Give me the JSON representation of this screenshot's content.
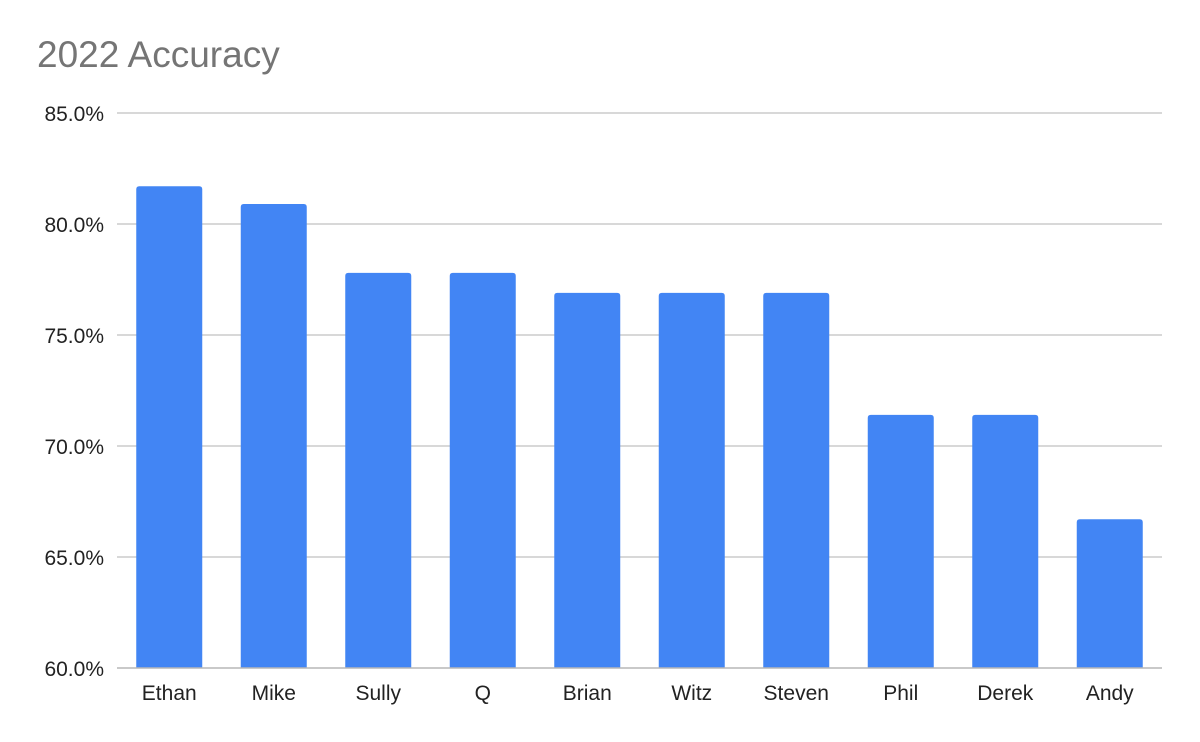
{
  "chart_data": {
    "type": "bar",
    "title": "2022 Accuracy",
    "xlabel": "",
    "ylabel": "",
    "categories": [
      "Ethan",
      "Mike",
      "Sully",
      "Q",
      "Brian",
      "Witz",
      "Steven",
      "Phil",
      "Derek",
      "Andy"
    ],
    "values": [
      81.7,
      80.9,
      77.8,
      77.8,
      76.9,
      76.9,
      76.9,
      71.4,
      71.4,
      66.7
    ],
    "ylim": [
      60,
      85
    ],
    "yticks": [
      60,
      65,
      70,
      75,
      80,
      85
    ],
    "ytick_labels": [
      "60.0%",
      "65.0%",
      "70.0%",
      "75.0%",
      "80.0%",
      "85.0%"
    ],
    "grid": true,
    "legend": "none",
    "colors": {
      "bar": "#4285f4",
      "grid": "#cccccc",
      "axis": "#b7b7b7",
      "title": "#757575",
      "label": "#222222"
    }
  }
}
